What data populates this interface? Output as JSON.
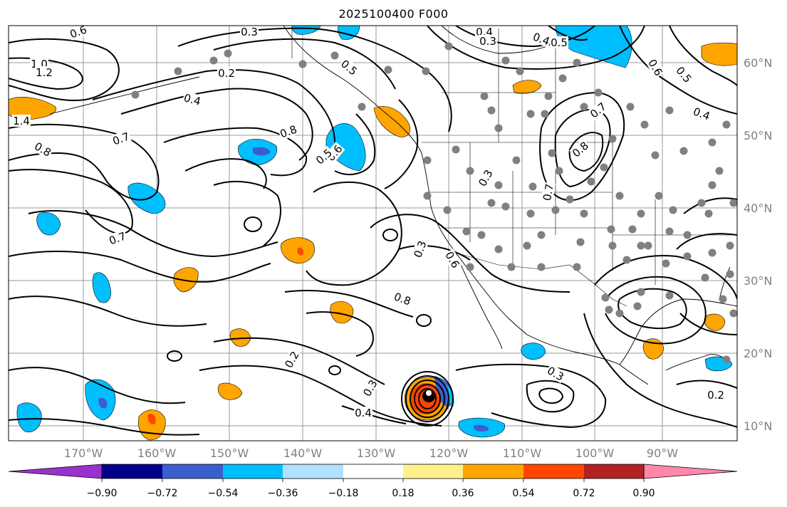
{
  "title": "2025100400 F000",
  "map": {
    "lon_ticks": [
      "170°W",
      "160°W",
      "150°W",
      "140°W",
      "130°W",
      "120°W",
      "110°W",
      "100°W",
      "90°W"
    ],
    "lat_ticks": [
      "60°N",
      "50°N",
      "40°N",
      "30°N",
      "20°N",
      "10°N"
    ],
    "contour_labels": [
      "1.0",
      "1.2",
      "1.4",
      "0.7",
      "0.8",
      "0.6",
      "0.4",
      "0.2",
      "0.3",
      "0.5",
      "0.8",
      "0.6",
      "0.5",
      "0.4",
      "0.3",
      "0.4",
      "0.5",
      "0.3",
      "0.7",
      "0.8",
      "0.7",
      "0.6",
      "0.5",
      "0.4",
      "0.3",
      "0.6",
      "0.7",
      "0.8",
      "0.2",
      "0.3",
      "0.4",
      "0.3",
      "0.2"
    ],
    "colorbar": {
      "tick_labels": [
        "−0.90",
        "−0.72",
        "−0.54",
        "−0.36",
        "−0.18",
        "0.18",
        "0.36",
        "0.54",
        "0.72",
        "0.90"
      ],
      "colors": [
        "#9932cc",
        "#00008b",
        "#3a5fcd",
        "#00bfff",
        "#b0e2ff",
        "#ffffff",
        "#fff08b",
        "#ffa500",
        "#ff4500",
        "#b22222",
        "#ff88aa"
      ]
    }
  }
}
